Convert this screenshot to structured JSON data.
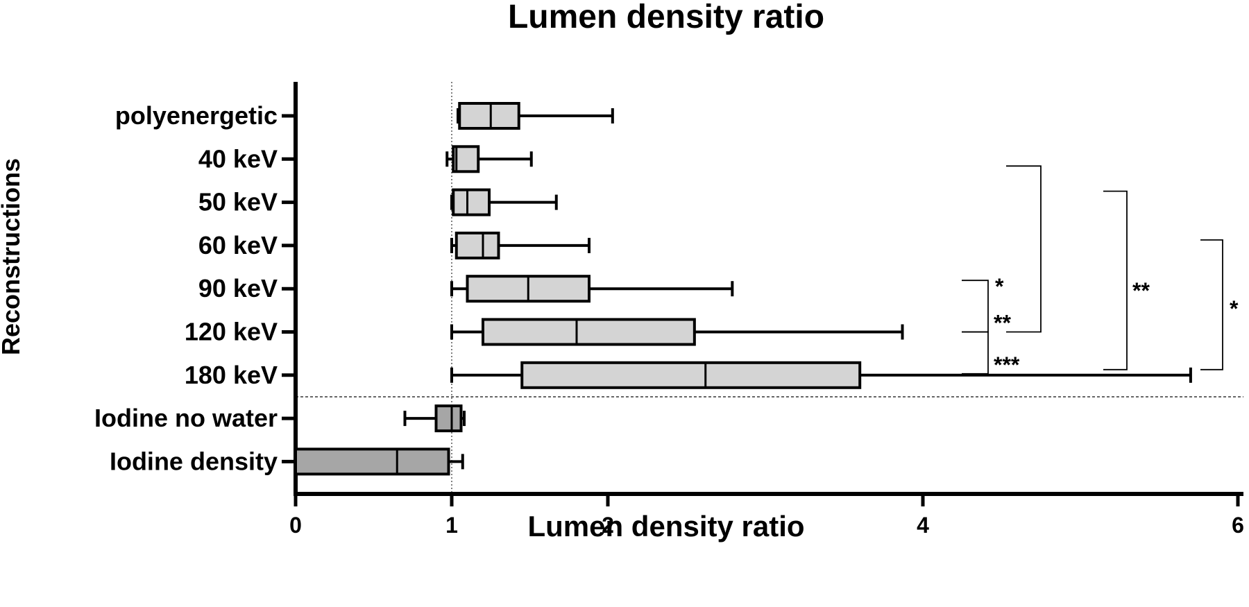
{
  "chart_data": {
    "type": "boxplot",
    "orientation": "horizontal",
    "title": "Lumen density ratio",
    "xlabel": "Lumen density ratio",
    "ylabel": "Reconstructions",
    "xlim": [
      0,
      6
    ],
    "x_ticks": [
      "0",
      "1",
      "2",
      "4",
      "6"
    ],
    "reference_line_x": 1,
    "groups": [
      {
        "label": "polyenergetic",
        "min": 1.04,
        "q1": 1.05,
        "median": 1.25,
        "q3": 1.43,
        "max": 2.03,
        "color": "#d4d4d4"
      },
      {
        "label": "40 keV",
        "min": 0.97,
        "q1": 1.01,
        "median": 1.03,
        "q3": 1.17,
        "max": 1.51,
        "color": "#d4d4d4"
      },
      {
        "label": "50 keV",
        "min": 1.0,
        "q1": 1.01,
        "median": 1.1,
        "q3": 1.24,
        "max": 1.67,
        "color": "#d4d4d4"
      },
      {
        "label": "60 keV",
        "min": 1.0,
        "q1": 1.03,
        "median": 1.2,
        "q3": 1.3,
        "max": 1.88,
        "color": "#d4d4d4"
      },
      {
        "label": "90 keV",
        "min": 1.0,
        "q1": 1.1,
        "median": 1.49,
        "q3": 1.88,
        "max": 2.79,
        "color": "#d4d4d4"
      },
      {
        "label": "120 keV",
        "min": 1.0,
        "q1": 1.2,
        "median": 1.8,
        "q3": 2.55,
        "max": 3.87,
        "color": "#d4d4d4"
      },
      {
        "label": "180 keV",
        "min": 1.0,
        "q1": 1.45,
        "median": 2.62,
        "q3": 3.6,
        "max": 5.7,
        "color": "#d4d4d4"
      },
      {
        "label": "Iodine no water",
        "min": 0.7,
        "q1": 0.9,
        "median": 1.0,
        "q3": 1.06,
        "max": 1.08,
        "color": "#a6a6a6"
      },
      {
        "label": "Iodine density",
        "min": 0.0,
        "q1": 0.0,
        "median": 0.65,
        "q3": 0.98,
        "max": 1.07,
        "color": "#a6a6a6"
      }
    ],
    "separator_after": "180 keV",
    "significance": [
      {
        "from": "90 keV",
        "to": "120 keV",
        "label": "*"
      },
      {
        "from": "40 keV",
        "to": "120 keV",
        "label": "**"
      },
      {
        "from": "120 keV",
        "to": "180 keV",
        "label": "***"
      },
      {
        "from": "50 keV",
        "to": "180 keV",
        "label": "**"
      },
      {
        "from": "60 keV",
        "to": "180 keV",
        "label": "*"
      }
    ]
  }
}
